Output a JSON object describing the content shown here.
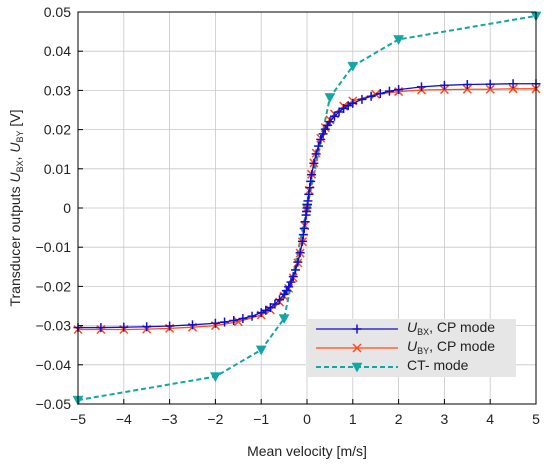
{
  "chart_data": {
    "type": "line",
    "xlabel": "Mean velocity [m/s]",
    "ylabel": {
      "prefix": "Transducer outputs ",
      "var1": "U",
      "sub1": "BX",
      "sep": ", ",
      "var2": "U",
      "sub2": "BY",
      "suffix": " [V]"
    },
    "xlim": [
      -5,
      5
    ],
    "ylim": [
      -0.05,
      0.05
    ],
    "xticks": [
      -5,
      -4,
      -3,
      -2,
      -1,
      0,
      1,
      2,
      3,
      4,
      5
    ],
    "xtick_labels": [
      "−5",
      "−4",
      "−3",
      "−2",
      "−1",
      "0",
      "1",
      "2",
      "3",
      "4",
      "5"
    ],
    "yticks": [
      -0.05,
      -0.04,
      -0.03,
      -0.02,
      -0.01,
      0,
      0.01,
      0.02,
      0.03,
      0.04,
      0.05
    ],
    "ytick_labels": [
      "−0.05",
      "−0.04",
      "−0.03",
      "−0.02",
      "−0.01",
      "0",
      "0.01",
      "0.02",
      "0.03",
      "0.04",
      "0.05"
    ],
    "grid": true,
    "legend_position": "bottom-right",
    "series": [
      {
        "key": "ubx",
        "legend": {
          "var": "U",
          "sub": "BX",
          "text": ", CP mode"
        },
        "color": "#1010c8",
        "line_style": "solid",
        "marker": "plus",
        "x": [
          -5,
          -4.5,
          -4,
          -3.5,
          -3,
          -2.5,
          -2,
          -1.8,
          -1.6,
          -1.4,
          -1.2,
          -1,
          -0.9,
          -0.8,
          -0.7,
          -0.6,
          -0.5,
          -0.45,
          -0.4,
          -0.35,
          -0.3,
          -0.25,
          -0.2,
          -0.15,
          -0.1,
          -0.08,
          -0.06,
          -0.04,
          -0.02,
          -0.01,
          0,
          0.01,
          0.02,
          0.04,
          0.06,
          0.08,
          0.1,
          0.15,
          0.2,
          0.25,
          0.3,
          0.35,
          0.4,
          0.45,
          0.5,
          0.6,
          0.7,
          0.8,
          0.9,
          1,
          1.2,
          1.4,
          1.6,
          1.8,
          2,
          2.5,
          3,
          3.5,
          4,
          4.5,
          5
        ],
        "y": [
          -0.0305,
          -0.0305,
          -0.0304,
          -0.0303,
          -0.0301,
          -0.0298,
          -0.0294,
          -0.0291,
          -0.0287,
          -0.0282,
          -0.0276,
          -0.0267,
          -0.0261,
          -0.0254,
          -0.0245,
          -0.0234,
          -0.022,
          -0.0211,
          -0.0201,
          -0.0189,
          -0.0175,
          -0.0158,
          -0.0138,
          -0.0114,
          -0.0085,
          -0.0068,
          -0.0052,
          -0.0035,
          -0.0018,
          -0.0009,
          0,
          0.0009,
          0.0018,
          0.0035,
          0.0052,
          0.0068,
          0.0085,
          0.0114,
          0.0138,
          0.0158,
          0.0175,
          0.0189,
          0.0201,
          0.0211,
          0.022,
          0.0234,
          0.0245,
          0.0254,
          0.0261,
          0.0267,
          0.0277,
          0.0285,
          0.0292,
          0.0298,
          0.0302,
          0.0309,
          0.0313,
          0.0315,
          0.0316,
          0.0317,
          0.0317
        ]
      },
      {
        "key": "uby",
        "legend": {
          "var": "U",
          "sub": "BY",
          "text": ", CP mode"
        },
        "color": "#ff4a1a",
        "line_style": "solid",
        "marker": "x",
        "x": [
          -5,
          -4.5,
          -4,
          -3.5,
          -3,
          -2.5,
          -2,
          -1.5,
          -1,
          -0.8,
          -0.6,
          -0.5,
          -0.4,
          -0.3,
          -0.2,
          -0.15,
          -0.1,
          -0.05,
          0,
          0.05,
          0.1,
          0.15,
          0.2,
          0.3,
          0.4,
          0.5,
          0.6,
          0.8,
          1,
          1.5,
          2,
          2.5,
          3,
          3.5,
          4,
          4.5,
          5
        ],
        "y": [
          -0.031,
          -0.031,
          -0.031,
          -0.0309,
          -0.0307,
          -0.0304,
          -0.03,
          -0.029,
          -0.0273,
          -0.026,
          -0.024,
          -0.0225,
          -0.0205,
          -0.0178,
          -0.014,
          -0.0115,
          -0.0086,
          -0.0045,
          0,
          0.0045,
          0.0086,
          0.0115,
          0.014,
          0.0178,
          0.0205,
          0.0225,
          0.024,
          0.026,
          0.0273,
          0.029,
          0.0297,
          0.0301,
          0.0302,
          0.0303,
          0.0303,
          0.0304,
          0.0304
        ]
      },
      {
        "key": "ct",
        "legend": {
          "var": "",
          "sub": "",
          "text": "CT- mode"
        },
        "color": "#14a5a5",
        "line_style": "dashed",
        "marker": "triangle-down",
        "x": [
          -5,
          -2,
          -1,
          -0.5,
          0,
          0.5,
          1,
          2,
          5
        ],
        "y": [
          -0.049,
          -0.043,
          -0.0362,
          -0.0282,
          0,
          0.0282,
          0.0362,
          0.043,
          0.049
        ]
      }
    ]
  }
}
